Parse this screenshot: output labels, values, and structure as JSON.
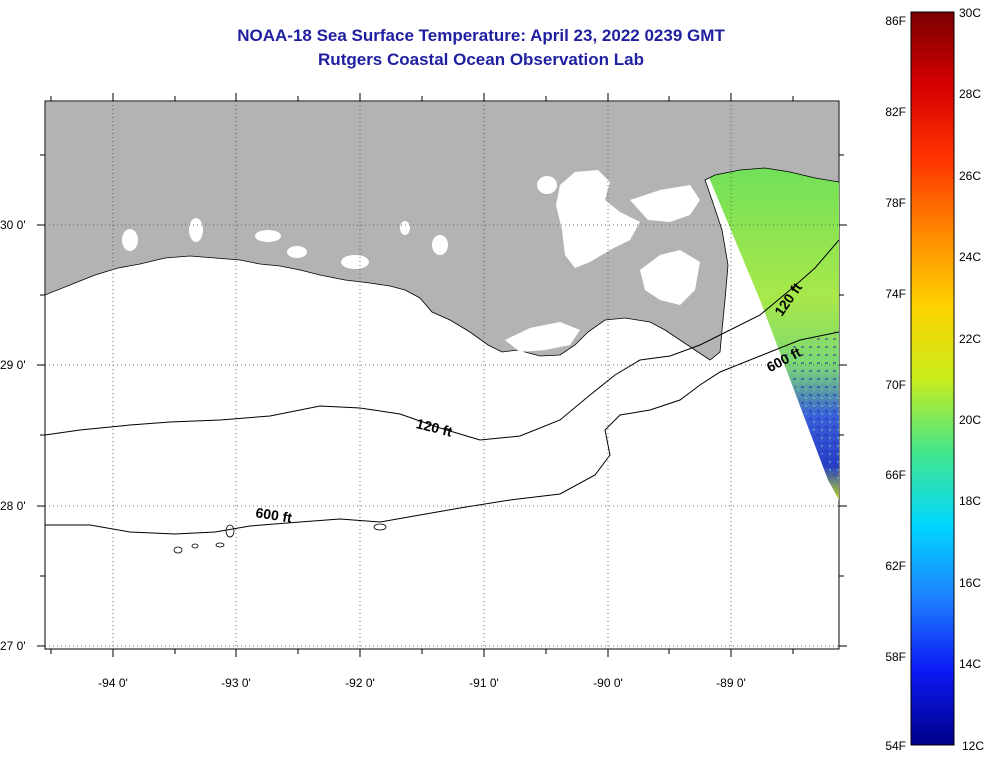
{
  "header": {
    "title": "NOAA-18 Sea Surface Temperature:  April 23, 2022 0239 GMT",
    "subtitle": "Rutgers Coastal Ocean Observation Lab"
  },
  "map": {
    "lat_labels": [
      "30 0'",
      "29 0'",
      "28 0'",
      "27 0'"
    ],
    "lon_labels": [
      "-94 0'",
      "-93 0'",
      "-92 0'",
      "-91 0'",
      "-90 0'",
      "-89 0'"
    ],
    "land_color": "#b3b3b3",
    "contour_labels": {
      "c120_west": "120 ft",
      "c120_east": "120 ft",
      "c600_west": "600 ft",
      "c600_east": "600 ft"
    }
  },
  "colorbar": {
    "f_labels": [
      "86F",
      "82F",
      "78F",
      "74F",
      "70F",
      "66F",
      "62F",
      "58F",
      "54F"
    ],
    "c_labels": [
      "30C",
      "28C",
      "26C",
      "24C",
      "22C",
      "20C",
      "18C",
      "16C",
      "14C",
      "12C"
    ]
  }
}
